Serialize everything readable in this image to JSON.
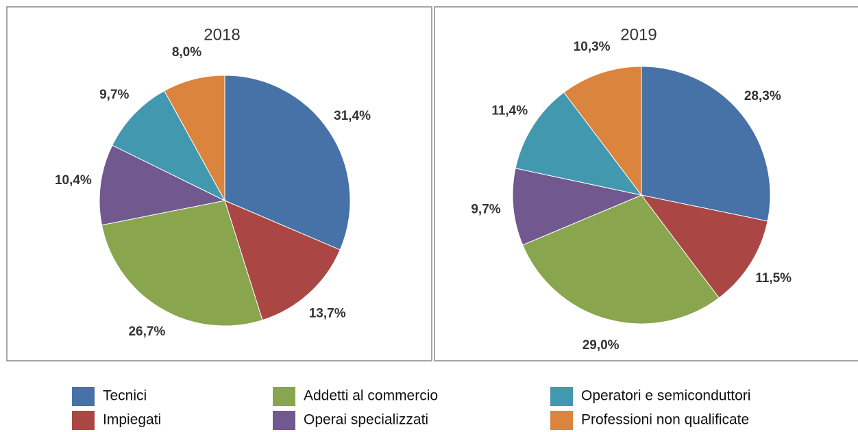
{
  "chart_data": {
    "type": "pie",
    "categories": [
      "Tecnici",
      "Impiegati",
      "Addetti al commercio",
      "Operai specializzati",
      "Operatori e semiconduttori",
      "Professioni non qualificate"
    ],
    "colors": [
      "#4672a8",
      "#aa4644",
      "#89a54e",
      "#71588f",
      "#4298af",
      "#db843d"
    ],
    "series": [
      {
        "name": "2018",
        "values": [
          31.4,
          13.7,
          26.7,
          10.4,
          9.7,
          8.0
        ],
        "value_labels": [
          "31,4%",
          "13,7%",
          "26,7%",
          "10,4%",
          "9,7%",
          "8,0%"
        ]
      },
      {
        "name": "2019",
        "values": [
          28.3,
          11.5,
          29.0,
          9.7,
          11.4,
          10.3
        ],
        "value_labels": [
          "28,3%",
          "11,5%",
          "29,0%",
          "9,7%",
          "11,4%",
          "10,3%"
        ]
      }
    ]
  }
}
